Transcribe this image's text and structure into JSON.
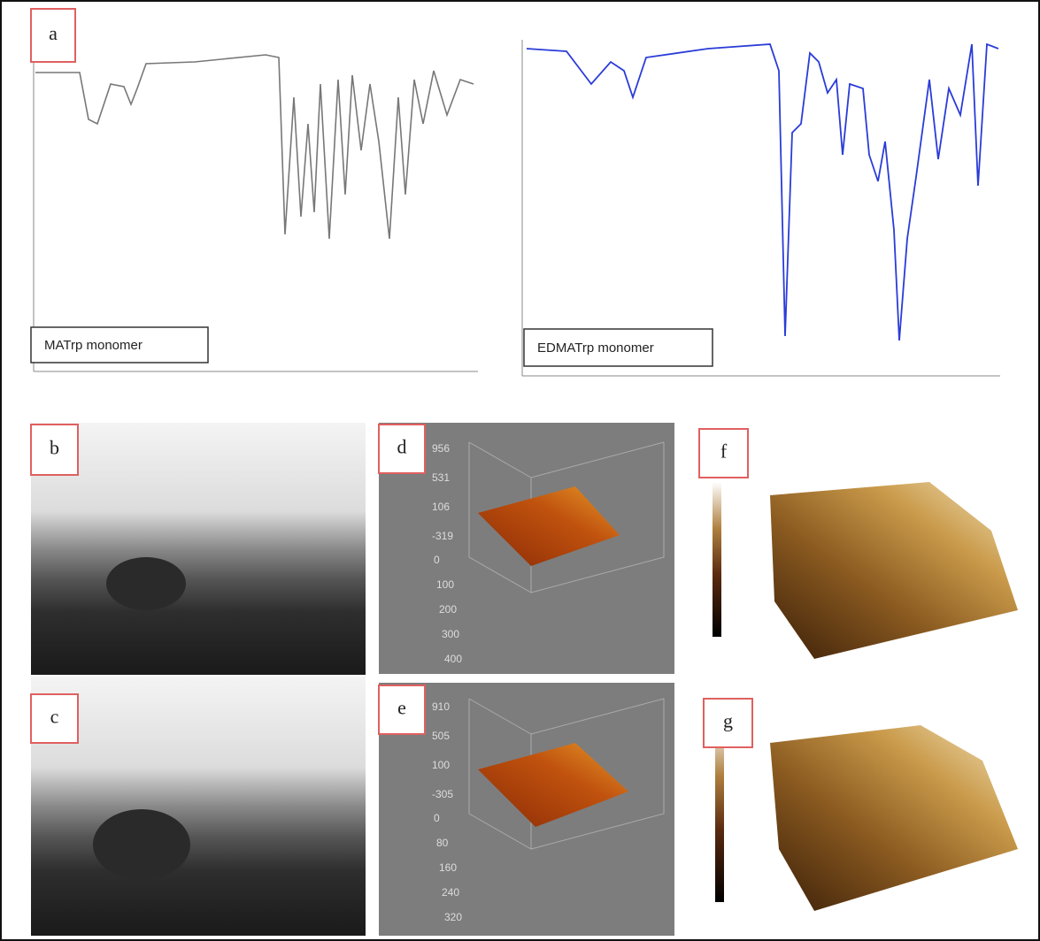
{
  "panels": {
    "a": {
      "label": "a",
      "left_caption": "MATrp monomer",
      "right_caption": "EDMATrp monomer"
    },
    "b": {
      "label": "b"
    },
    "c": {
      "label": "c"
    },
    "d": {
      "label": "d",
      "z_ticks": [
        956,
        531,
        106,
        -319
      ],
      "y_ticks": [
        0,
        100,
        200,
        300,
        400
      ]
    },
    "e": {
      "label": "e",
      "z_ticks": [
        910,
        505,
        100,
        -305
      ],
      "y_ticks": [
        0,
        80,
        160,
        240,
        320
      ]
    },
    "f": {
      "label": "f"
    },
    "g": {
      "label": "g"
    }
  }
}
